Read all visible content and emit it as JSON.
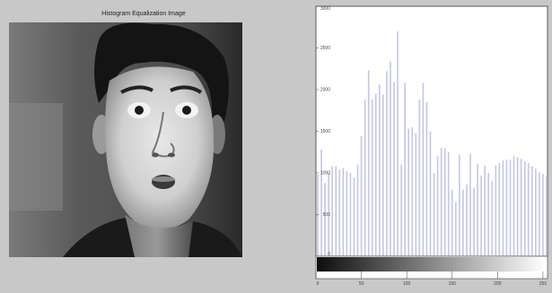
{
  "window": {
    "image_title": "Histogram Equalization Image"
  },
  "image": {
    "icon": "face-photo-icon"
  },
  "chart_data": {
    "type": "bar",
    "title": "",
    "xlabel": "",
    "ylabel": "",
    "xlim": [
      0,
      255
    ],
    "ylim": [
      0,
      3000
    ],
    "grid": false,
    "bar_color": "#c3c6e6",
    "colorbar": "gray",
    "x_ticks": [
      0,
      50,
      100,
      150,
      200,
      250
    ],
    "y_ticks": [
      0,
      500,
      1000,
      1500,
      2000,
      2500,
      3000
    ],
    "x": [
      2,
      6,
      10,
      14,
      18,
      22,
      26,
      30,
      34,
      38,
      42,
      46,
      50,
      54,
      58,
      62,
      66,
      70,
      74,
      78,
      82,
      86,
      90,
      94,
      98,
      102,
      106,
      110,
      114,
      118,
      122,
      126,
      130,
      134,
      138,
      142,
      146,
      150,
      154,
      158,
      162,
      166,
      170,
      174,
      178,
      182,
      186,
      190,
      194,
      198,
      202,
      206,
      210,
      214,
      218,
      222,
      226,
      230,
      234,
      238,
      242,
      246,
      250,
      254
    ],
    "values": [
      980,
      1280,
      880,
      1000,
      1080,
      1080,
      1040,
      1060,
      1020,
      1000,
      940,
      1100,
      1440,
      1880,
      2230,
      1880,
      1950,
      2060,
      1940,
      2220,
      2340,
      2090,
      2700,
      1100,
      2080,
      1530,
      1550,
      1480,
      1880,
      2080,
      1850,
      1500,
      1000,
      1200,
      1300,
      1300,
      1250,
      800,
      650,
      1220,
      800,
      860,
      1230,
      820,
      1110,
      970,
      1090,
      1000,
      900,
      1090,
      1120,
      1150,
      1160,
      1160,
      1200,
      1190,
      1170,
      1140,
      1120,
      1080,
      1050,
      1010,
      990,
      960
    ]
  }
}
